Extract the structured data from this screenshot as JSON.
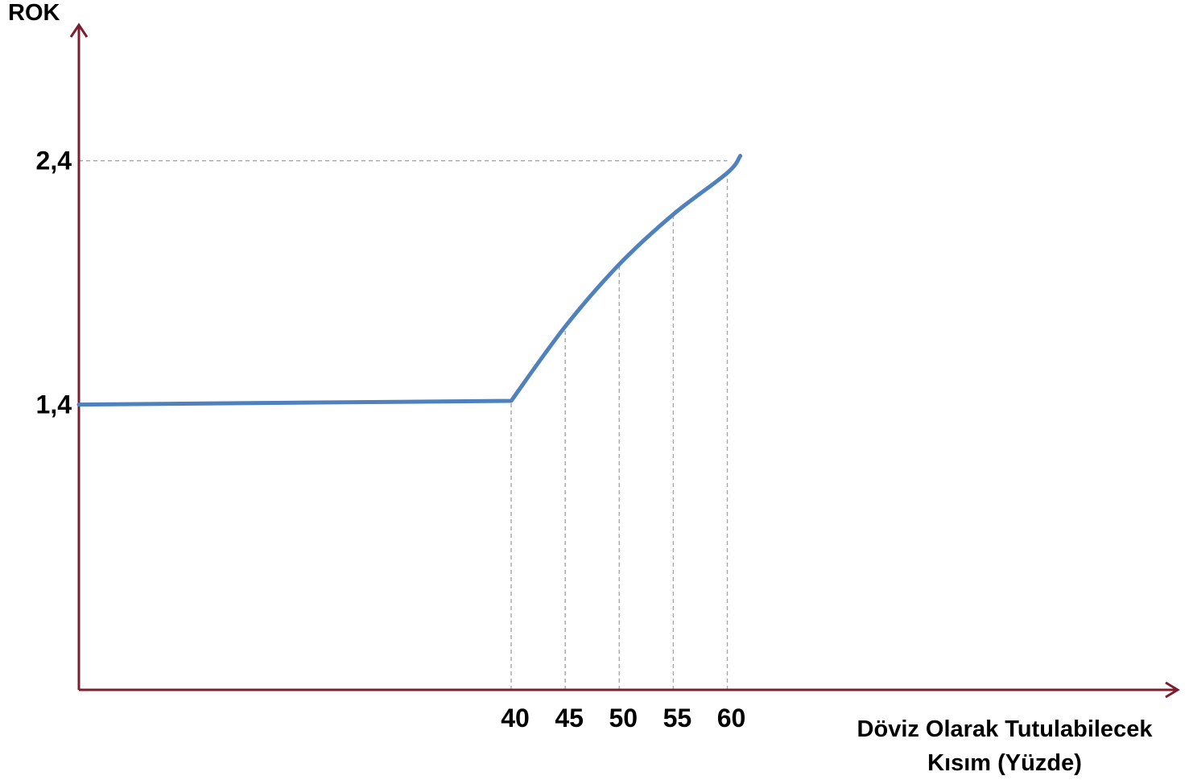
{
  "chart_data": {
    "type": "line",
    "title": "",
    "ylabel": "ROK",
    "xlabel_lines": [
      "Döviz Olarak Tutulabilecek",
      "Kısım (Yüzde)"
    ],
    "x_ticks": [
      {
        "value": 40,
        "label": "40"
      },
      {
        "value": 45,
        "label": "45"
      },
      {
        "value": 50,
        "label": "50"
      },
      {
        "value": 55,
        "label": "55"
      },
      {
        "value": 60,
        "label": "60"
      }
    ],
    "y_ticks": [
      {
        "value": 1.4,
        "label": "1,4"
      },
      {
        "value": 2.4,
        "label": "2,4"
      }
    ],
    "series": [
      {
        "color": "#4f81bd",
        "points": [
          {
            "x": 0,
            "y": 1.4
          },
          {
            "x": 40,
            "y": 1.415
          },
          {
            "x": 45,
            "y": 1.72
          },
          {
            "x": 50,
            "y": 1.975
          },
          {
            "x": 55,
            "y": 2.18
          },
          {
            "x": 60,
            "y": 2.35
          },
          {
            "x": 61.2,
            "y": 2.42
          }
        ]
      }
    ],
    "guides": {
      "vertical_at_x": [
        40,
        45,
        50,
        55,
        60
      ],
      "horizontal_at_y": [
        2.4
      ]
    },
    "xlim": [
      0,
      101.6
    ],
    "ylim": [
      0.23,
      2.96
    ],
    "grid": false,
    "legend": "none",
    "colors": {
      "axis": "#7b1e2e",
      "line": "#4f81bd",
      "guide": "#a6a6a6"
    }
  }
}
